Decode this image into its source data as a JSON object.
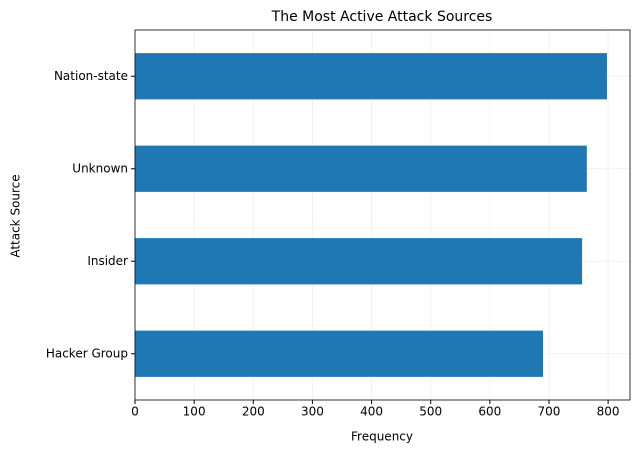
{
  "chart_data": {
    "type": "barh",
    "title": "The Most Active Attack Sources",
    "x_label": "Frequency",
    "y_label": "Attack Source",
    "categories": [
      "Hacker Group",
      "Insider",
      "Unknown",
      "Nation-state"
    ],
    "values": [
      690,
      756,
      764,
      798
    ],
    "color": "#1f77b4",
    "xlim": [
      0,
      837
    ],
    "xticks": [
      0,
      100,
      200,
      300,
      400,
      500,
      600,
      700,
      800
    ],
    "grid": true
  }
}
